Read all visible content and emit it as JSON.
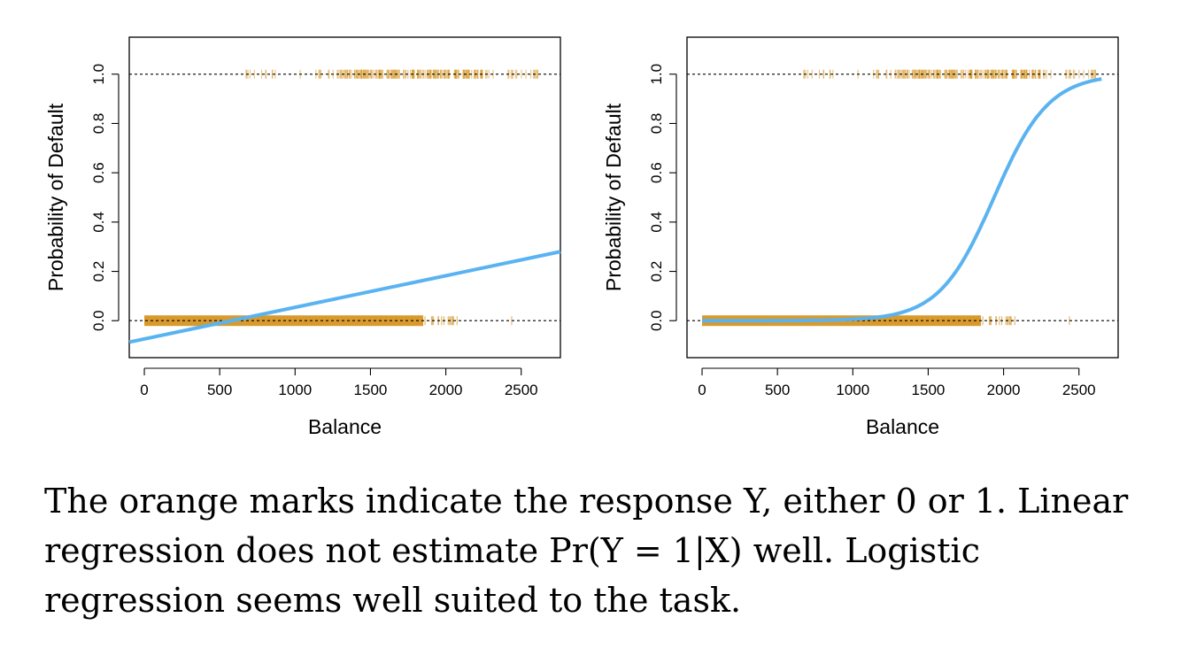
{
  "colors": {
    "observed": "#d89a2d",
    "fit": "#5ab3f1",
    "reference": "#000000"
  },
  "chart_data": [
    {
      "type": "scatter",
      "title": "",
      "xlabel": "Balance",
      "ylabel": "Probability of Default",
      "xlim": [
        -100,
        2760
      ],
      "ylim": [
        -0.15,
        1.15
      ],
      "xticks": [
        0,
        500,
        1000,
        1500,
        2000,
        2500
      ],
      "xtick_labels": [
        "0",
        "500",
        "1000",
        "1500",
        "2000",
        "2500"
      ],
      "yticks": [
        0.0,
        0.2,
        0.4,
        0.6,
        0.8,
        1.0
      ],
      "ytick_labels": [
        "0.0",
        "0.2",
        "0.4",
        "0.6",
        "0.8",
        "1.0"
      ],
      "reference_lines": [
        0,
        1
      ],
      "observations": {
        "response_0": {
          "y": 0,
          "dense_from": 0,
          "dense_to": 1850,
          "sparse_to": 2450
        },
        "response_1": {
          "y": 1,
          "sparse_from": 650,
          "dense_from": 1280,
          "dense_to": 2250,
          "sparse_to": 2650
        }
      },
      "fit": {
        "name": "Linear regression",
        "kind": "linear",
        "x": [
          -100,
          2760
        ],
        "y": [
          -0.087,
          0.28
        ]
      }
    },
    {
      "type": "scatter",
      "title": "",
      "xlabel": "Balance",
      "ylabel": "Probability of Default",
      "xlim": [
        -100,
        2760
      ],
      "ylim": [
        -0.15,
        1.15
      ],
      "xticks": [
        0,
        500,
        1000,
        1500,
        2000,
        2500
      ],
      "xtick_labels": [
        "0",
        "500",
        "1000",
        "1500",
        "2000",
        "2500"
      ],
      "yticks": [
        0.0,
        0.2,
        0.4,
        0.6,
        0.8,
        1.0
      ],
      "ytick_labels": [
        "0.0",
        "0.2",
        "0.4",
        "0.6",
        "0.8",
        "1.0"
      ],
      "reference_lines": [
        0,
        1
      ],
      "observations": {
        "response_0": {
          "y": 0,
          "dense_from": 0,
          "dense_to": 1850,
          "sparse_to": 2450
        },
        "response_1": {
          "y": 1,
          "sparse_from": 650,
          "dense_from": 1280,
          "dense_to": 2250,
          "sparse_to": 2650
        }
      },
      "fit": {
        "name": "Logistic regression",
        "kind": "logistic",
        "intercept": -10.65,
        "slope": 0.005499,
        "x_from": 0,
        "x_to": 2654
      }
    }
  ],
  "caption": {
    "line1": "The orange marks indicate the response Y, either 0 or 1. Linear",
    "line2": "regression does not estimate Pr(Y = 1|X) well. Logistic",
    "line3": "regression seems well suited to the task."
  }
}
